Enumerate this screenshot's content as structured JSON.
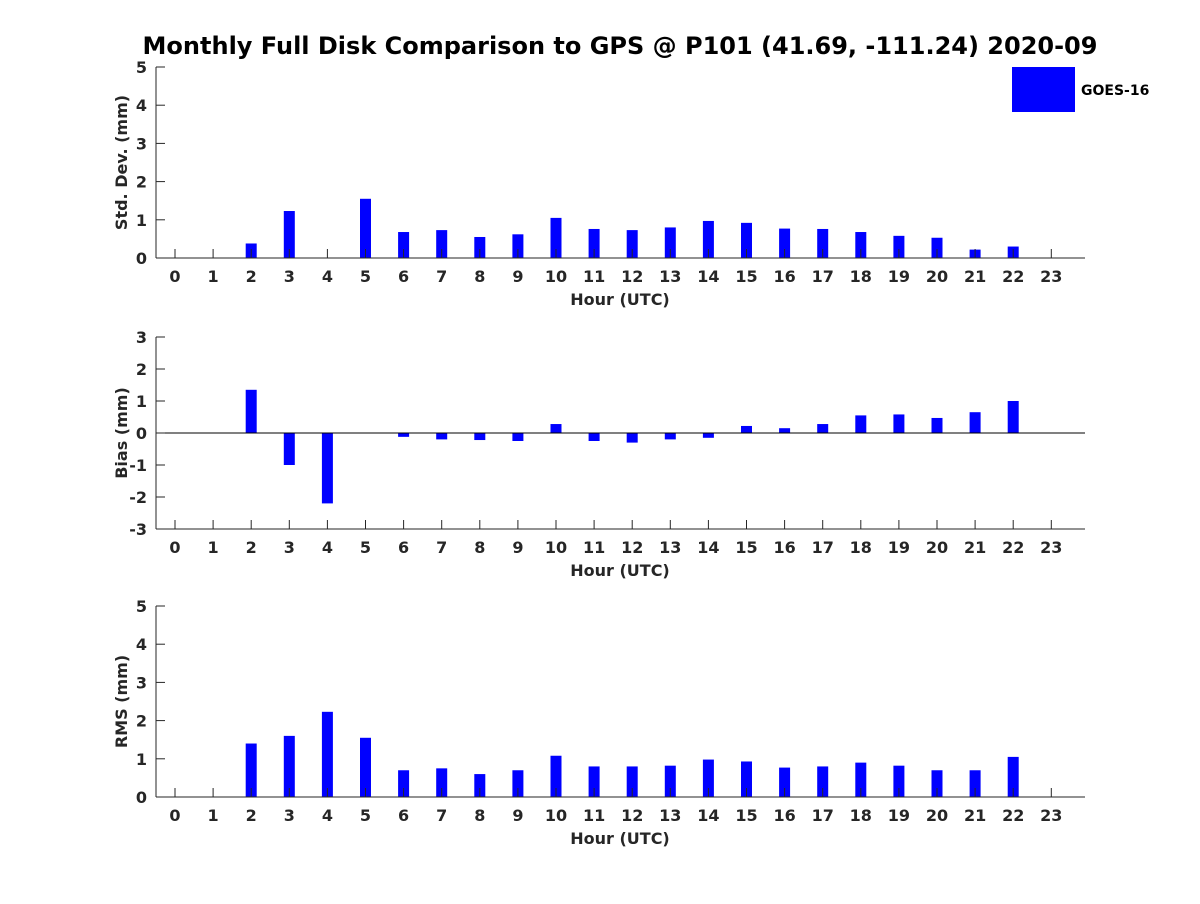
{
  "title": "Monthly Full Disk Comparison to GPS @ P101 (41.69, -111.24) 2020-09",
  "legend": {
    "label": "GOES-16",
    "color": "#0000ff"
  },
  "chart_data": [
    {
      "type": "bar",
      "x": [
        0,
        1,
        2,
        3,
        4,
        5,
        6,
        7,
        8,
        9,
        10,
        11,
        12,
        13,
        14,
        15,
        16,
        17,
        18,
        19,
        20,
        21,
        22,
        23
      ],
      "series": [
        {
          "name": "GOES-16",
          "values": [
            null,
            null,
            0.38,
            1.23,
            null,
            1.55,
            0.68,
            0.73,
            0.55,
            0.62,
            1.05,
            0.76,
            0.73,
            0.8,
            0.97,
            0.92,
            0.77,
            0.76,
            0.68,
            0.58,
            0.53,
            0.22,
            0.3,
            null
          ]
        }
      ],
      "xlabel": "Hour (UTC)",
      "ylabel": "Std. Dev. (mm)",
      "ylim": [
        0,
        5
      ],
      "yticks": [
        0,
        1,
        2,
        3,
        4,
        5
      ],
      "grid": false,
      "legend_position": "top-right"
    },
    {
      "type": "bar",
      "x": [
        0,
        1,
        2,
        3,
        4,
        5,
        6,
        7,
        8,
        9,
        10,
        11,
        12,
        13,
        14,
        15,
        16,
        17,
        18,
        19,
        20,
        21,
        22,
        23
      ],
      "series": [
        {
          "name": "GOES-16",
          "values": [
            null,
            null,
            1.35,
            -1.0,
            -2.2,
            0.0,
            -0.12,
            -0.2,
            -0.22,
            -0.25,
            0.28,
            -0.25,
            -0.3,
            -0.2,
            -0.15,
            0.22,
            0.15,
            0.28,
            0.55,
            0.58,
            0.47,
            0.65,
            1.0,
            null
          ]
        }
      ],
      "xlabel": "Hour (UTC)",
      "ylabel": "Bias (mm)",
      "ylim": [
        -3,
        3
      ],
      "yticks": [
        -3,
        -2,
        -1,
        0,
        1,
        2,
        3
      ],
      "grid": false
    },
    {
      "type": "bar",
      "x": [
        0,
        1,
        2,
        3,
        4,
        5,
        6,
        7,
        8,
        9,
        10,
        11,
        12,
        13,
        14,
        15,
        16,
        17,
        18,
        19,
        20,
        21,
        22,
        23
      ],
      "series": [
        {
          "name": "GOES-16",
          "values": [
            null,
            null,
            1.4,
            1.6,
            2.23,
            1.55,
            0.7,
            0.75,
            0.6,
            0.7,
            1.08,
            0.8,
            0.8,
            0.82,
            0.98,
            0.93,
            0.77,
            0.8,
            0.9,
            0.82,
            0.7,
            0.7,
            1.05,
            null
          ]
        }
      ],
      "xlabel": "Hour (UTC)",
      "ylabel": "RMS (mm)",
      "ylim": [
        0,
        5
      ],
      "yticks": [
        0,
        1,
        2,
        3,
        4,
        5
      ],
      "grid": false
    }
  ]
}
